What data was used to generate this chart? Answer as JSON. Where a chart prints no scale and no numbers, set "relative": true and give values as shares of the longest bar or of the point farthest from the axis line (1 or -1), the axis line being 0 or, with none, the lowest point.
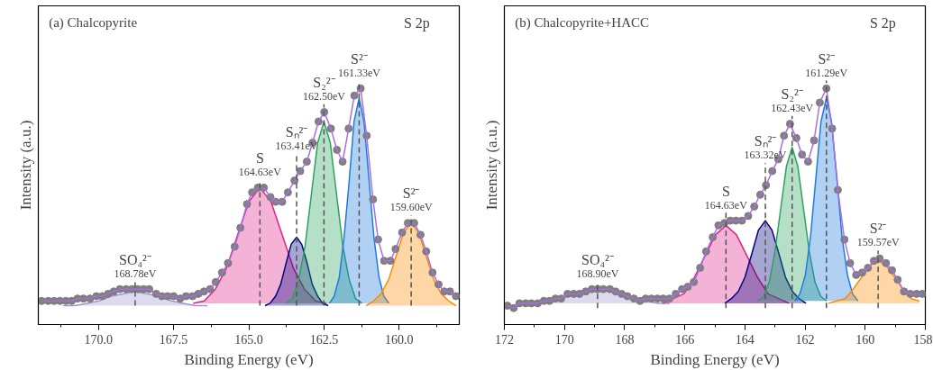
{
  "chart_data": [
    {
      "type": "line",
      "title": "(a) Chalcopyrite",
      "subtitle": "S 2p",
      "xlabel": "Binding Energy (eV)",
      "ylabel": "Intensity (a.u.)",
      "relative": true,
      "tick_labels": "x",
      "xlim": [
        172,
        158
      ],
      "xticks": [
        {
          "value": 171.25,
          "label": null
        },
        {
          "value": 170,
          "label": "170.0"
        },
        {
          "value": 168.75,
          "label": null
        },
        {
          "value": 167.5,
          "label": "167.5"
        },
        {
          "value": 166.25,
          "label": null
        },
        {
          "value": 165,
          "label": "165.0"
        },
        {
          "value": 163.75,
          "label": null
        },
        {
          "value": 162.5,
          "label": "162.5"
        },
        {
          "value": 161.25,
          "label": null
        },
        {
          "value": 160,
          "label": "160.0"
        },
        {
          "value": 158.75,
          "label": null
        }
      ],
      "series": [
        {
          "type": "area",
          "color": "#9f95d0",
          "x": [
            171.18,
            170.78,
            170.38,
            169.98,
            169.58,
            169.18,
            168.78,
            168.38,
            167.98,
            167.58,
            167.18,
            166.78,
            166.38
          ],
          "values": [
            0.08,
            0.08,
            0.09,
            0.1,
            0.12,
            0.13,
            0.14,
            0.13,
            0.12,
            0.1,
            0.09,
            0.08,
            0.08
          ]
        },
        {
          "type": "area",
          "color": "#e0218a",
          "x": [
            166.85,
            166.48,
            166.11,
            165.74,
            165.37,
            165.0,
            164.63,
            164.26,
            163.89,
            163.52,
            163.15,
            162.78,
            162.41
          ],
          "values": [
            0.09,
            0.1,
            0.15,
            0.24,
            0.38,
            0.52,
            0.58,
            0.52,
            0.38,
            0.24,
            0.15,
            0.1,
            0.09
          ]
        },
        {
          "type": "area",
          "color": "#000080",
          "x": [
            164.46,
            164.29,
            164.11,
            163.94,
            163.76,
            163.59,
            163.41,
            163.24,
            163.06,
            162.89,
            162.71,
            162.54,
            162.36
          ],
          "values": [
            0.08,
            0.09,
            0.12,
            0.17,
            0.26,
            0.34,
            0.37,
            0.34,
            0.26,
            0.17,
            0.12,
            0.09,
            0.08
          ]
        },
        {
          "type": "area",
          "color": "#2ca25f",
          "x": [
            163.76,
            163.55,
            163.34,
            163.13,
            162.92,
            162.71,
            162.5,
            162.29,
            162.08,
            161.87,
            161.66,
            161.45,
            161.24
          ],
          "values": [
            0.09,
            0.11,
            0.19,
            0.33,
            0.55,
            0.77,
            0.86,
            0.77,
            0.55,
            0.33,
            0.19,
            0.11,
            0.09
          ]
        },
        {
          "type": "area",
          "color": "#1e7be0",
          "x": [
            162.32,
            162.16,
            161.99,
            161.83,
            161.66,
            161.5,
            161.33,
            161.17,
            161.0,
            160.84,
            160.67,
            160.51,
            160.34
          ],
          "values": [
            0.09,
            0.12,
            0.2,
            0.37,
            0.61,
            0.86,
            0.96,
            0.86,
            0.61,
            0.37,
            0.2,
            0.12,
            0.09
          ]
        },
        {
          "type": "area",
          "color": "#ff8c00",
          "x": [
            161.1,
            160.85,
            160.6,
            160.35,
            160.1,
            159.85,
            159.6,
            159.35,
            159.1,
            158.85,
            158.6,
            158.35,
            158.1
          ],
          "values": [
            0.08,
            0.1,
            0.13,
            0.19,
            0.29,
            0.39,
            0.43,
            0.39,
            0.29,
            0.19,
            0.13,
            0.1,
            0.08
          ]
        },
        {
          "type": "scatter",
          "marker": "circle",
          "color": "#7f7f7f",
          "x": [
            171.89,
            171.67,
            171.47,
            171.28,
            171.08,
            170.89,
            170.7,
            170.5,
            170.28,
            170.07,
            169.87,
            169.68,
            169.49,
            169.29,
            169.08,
            168.89,
            168.69,
            168.5,
            168.31,
            168.08,
            167.89,
            167.7,
            167.5,
            167.28,
            167.09,
            166.87,
            166.68,
            166.49,
            166.29,
            166.1,
            165.89,
            165.69,
            165.47,
            165.28,
            165.06,
            164.89,
            164.7,
            164.5,
            164.28,
            164.11,
            163.89,
            163.7,
            163.48,
            163.29,
            163.07,
            162.88,
            162.68,
            162.49,
            162.27,
            162.07,
            161.88,
            161.68,
            161.49,
            161.28,
            161.08,
            160.87,
            160.7,
            160.5,
            160.29,
            160.12,
            159.9,
            159.71,
            159.5,
            159.29,
            159.1,
            158.89,
            158.69,
            158.5,
            158.31,
            158.11
          ],
          "values": [
            0.1,
            0.1,
            0.1,
            0.1,
            0.1,
            0.1,
            0.11,
            0.11,
            0.11,
            0.12,
            0.12,
            0.13,
            0.14,
            0.15,
            0.15,
            0.15,
            0.15,
            0.15,
            0.15,
            0.13,
            0.12,
            0.12,
            0.12,
            0.11,
            0.12,
            0.12,
            0.13,
            0.14,
            0.15,
            0.18,
            0.22,
            0.26,
            0.33,
            0.41,
            0.51,
            0.56,
            0.58,
            0.58,
            0.54,
            0.52,
            0.52,
            0.56,
            0.61,
            0.65,
            0.69,
            0.77,
            0.86,
            0.9,
            0.83,
            0.74,
            0.69,
            0.83,
            0.97,
            1.0,
            0.8,
            0.53,
            0.36,
            0.27,
            0.27,
            0.32,
            0.39,
            0.43,
            0.43,
            0.38,
            0.31,
            0.22,
            0.17,
            0.14,
            0.14,
            0.12
          ]
        },
        {
          "color": "#a86fe0",
          "x": [
            171.89,
            171.67,
            171.47,
            171.28,
            171.08,
            170.89,
            170.7,
            170.5,
            170.28,
            170.07,
            169.87,
            169.68,
            169.49,
            169.29,
            169.08,
            168.89,
            168.69,
            168.5,
            168.31,
            168.08,
            167.89,
            167.7,
            167.5,
            167.28,
            167.09,
            166.87,
            166.68,
            166.49,
            166.29,
            166.1,
            165.89,
            165.69,
            165.47,
            165.28,
            165.06,
            164.89,
            164.7,
            164.5,
            164.28,
            164.11,
            163.89,
            163.7,
            163.48,
            163.29,
            163.07,
            162.88,
            162.68,
            162.49,
            162.27,
            162.07,
            161.88,
            161.68,
            161.49,
            161.28,
            161.08,
            160.87,
            160.7,
            160.5,
            160.29,
            160.12,
            159.9,
            159.71,
            159.5,
            159.29,
            159.1,
            158.89,
            158.69,
            158.5,
            158.31,
            158.11
          ],
          "values": [
            0.1,
            0.1,
            0.1,
            0.1,
            0.1,
            0.1,
            0.11,
            0.11,
            0.11,
            0.12,
            0.12,
            0.13,
            0.14,
            0.15,
            0.15,
            0.15,
            0.15,
            0.15,
            0.15,
            0.13,
            0.12,
            0.12,
            0.12,
            0.11,
            0.12,
            0.12,
            0.13,
            0.14,
            0.15,
            0.18,
            0.22,
            0.26,
            0.33,
            0.41,
            0.51,
            0.56,
            0.58,
            0.58,
            0.54,
            0.52,
            0.52,
            0.56,
            0.61,
            0.65,
            0.69,
            0.77,
            0.86,
            0.9,
            0.83,
            0.74,
            0.69,
            0.83,
            0.97,
            1.0,
            0.8,
            0.53,
            0.36,
            0.27,
            0.27,
            0.32,
            0.39,
            0.43,
            0.43,
            0.38,
            0.31,
            0.22,
            0.17,
            0.14,
            0.14,
            0.12
          ]
        }
      ],
      "ref_lines": [
        {
          "axis": "x",
          "value": 168.78,
          "color": "#555555",
          "line_style": "dashed"
        },
        {
          "axis": "x",
          "value": 164.63,
          "color": "#555555",
          "line_style": "dashed"
        },
        {
          "axis": "x",
          "value": 163.41,
          "color": "#555555",
          "line_style": "dashed"
        },
        {
          "axis": "x",
          "value": 162.5,
          "color": "#555555",
          "line_style": "dashed"
        },
        {
          "axis": "x",
          "value": 161.33,
          "color": "#555555",
          "line_style": "dashed"
        },
        {
          "axis": "x",
          "value": 159.6,
          "color": "#555555",
          "line_style": "dashed"
        }
      ],
      "annotations": [
        {
          "text": "SO₄²⁻\n168.78eV",
          "x": 168.78,
          "y": 0.15
        },
        {
          "text": "S\n164.63eV",
          "x": 164.63,
          "y": 0.58
        },
        {
          "text": "Sₙ²⁻\n163.41eV",
          "x": 163.41,
          "y": 0.69
        },
        {
          "text": "S₂²⁻\n162.50eV",
          "x": 162.5,
          "y": 0.9
        },
        {
          "text": "S²⁻\n161.33eV",
          "x": 161.33,
          "y": 1.0
        },
        {
          "text": "S²⁻\n159.60eV",
          "x": 159.6,
          "y": 0.43
        }
      ]
    },
    {
      "type": "line",
      "title": "(b) Chalcopyrite+HACC",
      "subtitle": "S 2p",
      "xlabel": "Binding Energy (eV)",
      "ylabel": "Intensity (a.u.)",
      "relative": true,
      "tick_labels": "x",
      "xlim": [
        172,
        158
      ],
      "xticks": [
        172,
        {
          "value": 171,
          "label": null
        },
        170,
        {
          "value": 169,
          "label": null
        },
        168,
        {
          "value": 167,
          "label": null
        },
        166,
        {
          "value": 165,
          "label": null
        },
        164,
        {
          "value": 163,
          "label": null
        },
        162,
        {
          "value": 161,
          "label": null
        },
        160,
        {
          "value": 159,
          "label": null
        },
        158
      ],
      "series": [
        {
          "type": "area",
          "color": "#9f95d0",
          "x": [
            171.3,
            170.9,
            170.5,
            170.1,
            169.7,
            169.3,
            168.9,
            168.5,
            168.1,
            167.7,
            167.3,
            166.9,
            166.5
          ],
          "values": [
            0.09,
            0.09,
            0.1,
            0.11,
            0.13,
            0.15,
            0.16,
            0.15,
            0.13,
            0.11,
            0.1,
            0.09,
            0.09
          ]
        },
        {
          "type": "area",
          "color": "#e0218a",
          "x": [
            166.73,
            166.38,
            166.03,
            165.68,
            165.33,
            164.98,
            164.63,
            164.28,
            163.93,
            163.58,
            163.23,
            162.88,
            162.53
          ],
          "values": [
            0.09,
            0.11,
            0.13,
            0.2,
            0.29,
            0.38,
            0.42,
            0.38,
            0.29,
            0.2,
            0.13,
            0.11,
            0.09
          ]
        },
        {
          "type": "area",
          "color": "#000080",
          "x": [
            164.67,
            164.45,
            164.22,
            164.0,
            163.77,
            163.55,
            163.32,
            163.1,
            162.87,
            162.65,
            162.42,
            162.2,
            161.97
          ],
          "values": [
            0.09,
            0.11,
            0.14,
            0.2,
            0.3,
            0.4,
            0.44,
            0.4,
            0.3,
            0.2,
            0.14,
            0.11,
            0.09
          ]
        },
        {
          "type": "area",
          "color": "#2ca25f",
          "x": [
            163.57,
            163.38,
            163.19,
            163.0,
            162.81,
            162.62,
            162.43,
            162.24,
            162.05,
            161.86,
            161.67,
            161.48,
            161.29
          ],
          "values": [
            0.1,
            0.12,
            0.18,
            0.31,
            0.49,
            0.67,
            0.75,
            0.67,
            0.49,
            0.31,
            0.18,
            0.12,
            0.1
          ]
        },
        {
          "type": "area",
          "color": "#1e7be0",
          "x": [
            162.34,
            162.17,
            161.99,
            161.82,
            161.64,
            161.47,
            161.29,
            161.12,
            160.94,
            160.77,
            160.59,
            160.42,
            160.24
          ],
          "values": [
            0.1,
            0.13,
            0.21,
            0.37,
            0.62,
            0.86,
            0.96,
            0.86,
            0.62,
            0.37,
            0.21,
            0.13,
            0.1
          ]
        },
        {
          "type": "area",
          "color": "#ff8c00",
          "x": [
            161.22,
            160.95,
            160.67,
            160.4,
            160.12,
            159.85,
            159.57,
            159.3,
            159.02,
            158.75,
            158.47,
            158.2
          ],
          "values": [
            0.09,
            0.1,
            0.11,
            0.15,
            0.2,
            0.25,
            0.27,
            0.25,
            0.2,
            0.15,
            0.11,
            0.1
          ]
        },
        {
          "type": "scatter",
          "marker": "circle",
          "color": "#7f7f7f",
          "x": [
            171.9,
            171.69,
            171.5,
            171.29,
            171.1,
            170.89,
            170.69,
            170.5,
            170.3,
            170.11,
            169.9,
            169.69,
            169.5,
            169.29,
            169.09,
            168.9,
            168.71,
            168.49,
            168.3,
            168.1,
            167.91,
            167.69,
            167.49,
            167.3,
            167.11,
            166.91,
            166.72,
            166.51,
            166.3,
            166.09,
            165.9,
            165.7,
            165.49,
            165.29,
            165.07,
            164.88,
            164.68,
            164.49,
            164.3,
            164.1,
            163.89,
            163.69,
            163.49,
            163.3,
            163.09,
            162.89,
            162.7,
            162.5,
            162.29,
            162.1,
            161.9,
            161.7,
            161.51,
            161.29,
            161.1,
            160.91,
            160.69,
            160.5,
            160.3,
            160.1,
            159.91,
            159.71,
            159.52,
            159.31,
            159.11,
            158.92,
            158.71,
            158.5,
            158.29,
            158.1
          ],
          "values": [
            0.08,
            0.07,
            0.09,
            0.09,
            0.09,
            0.09,
            0.1,
            0.1,
            0.11,
            0.11,
            0.13,
            0.13,
            0.13,
            0.14,
            0.15,
            0.15,
            0.15,
            0.15,
            0.14,
            0.13,
            0.12,
            0.11,
            0.1,
            0.11,
            0.11,
            0.11,
            0.11,
            0.11,
            0.13,
            0.15,
            0.16,
            0.18,
            0.24,
            0.31,
            0.37,
            0.42,
            0.43,
            0.44,
            0.44,
            0.44,
            0.46,
            0.5,
            0.55,
            0.59,
            0.65,
            0.7,
            0.8,
            0.85,
            0.79,
            0.72,
            0.69,
            0.78,
            0.94,
            1.0,
            0.83,
            0.57,
            0.36,
            0.26,
            0.21,
            0.22,
            0.24,
            0.27,
            0.28,
            0.26,
            0.23,
            0.19,
            0.14,
            0.13,
            0.13,
            0.13
          ]
        },
        {
          "color": "#a86fe0",
          "x": [
            171.9,
            171.69,
            171.5,
            171.29,
            171.1,
            170.89,
            170.69,
            170.5,
            170.3,
            170.11,
            169.9,
            169.69,
            169.5,
            169.29,
            169.09,
            168.9,
            168.71,
            168.49,
            168.3,
            168.1,
            167.91,
            167.69,
            167.49,
            167.3,
            167.11,
            166.91,
            166.72,
            166.51,
            166.3,
            166.09,
            165.9,
            165.7,
            165.49,
            165.29,
            165.07,
            164.88,
            164.68,
            164.49,
            164.3,
            164.1,
            163.89,
            163.69,
            163.49,
            163.3,
            163.09,
            162.89,
            162.7,
            162.5,
            162.29,
            162.1,
            161.9,
            161.7,
            161.51,
            161.29,
            161.1,
            160.91,
            160.69,
            160.5,
            160.3,
            160.1,
            159.91,
            159.71,
            159.52,
            159.31,
            159.11,
            158.92,
            158.71,
            158.5,
            158.29,
            158.1
          ],
          "values": [
            0.08,
            0.07,
            0.09,
            0.09,
            0.09,
            0.09,
            0.1,
            0.1,
            0.11,
            0.11,
            0.13,
            0.13,
            0.13,
            0.14,
            0.15,
            0.15,
            0.15,
            0.15,
            0.14,
            0.13,
            0.12,
            0.11,
            0.1,
            0.11,
            0.11,
            0.11,
            0.11,
            0.11,
            0.13,
            0.15,
            0.16,
            0.18,
            0.24,
            0.31,
            0.37,
            0.42,
            0.43,
            0.44,
            0.44,
            0.44,
            0.46,
            0.5,
            0.55,
            0.59,
            0.65,
            0.7,
            0.8,
            0.85,
            0.79,
            0.72,
            0.69,
            0.78,
            0.94,
            1.0,
            0.83,
            0.57,
            0.36,
            0.26,
            0.21,
            0.22,
            0.24,
            0.27,
            0.28,
            0.26,
            0.23,
            0.19,
            0.14,
            0.13,
            0.13,
            0.13
          ]
        }
      ],
      "ref_lines": [
        {
          "axis": "x",
          "value": 168.9,
          "color": "#555555",
          "line_style": "dashed"
        },
        {
          "axis": "x",
          "value": 164.63,
          "color": "#555555",
          "line_style": "dashed"
        },
        {
          "axis": "x",
          "value": 163.32,
          "color": "#555555",
          "line_style": "dashed"
        },
        {
          "axis": "x",
          "value": 162.43,
          "color": "#555555",
          "line_style": "dashed"
        },
        {
          "axis": "x",
          "value": 161.29,
          "color": "#555555",
          "line_style": "dashed"
        },
        {
          "axis": "x",
          "value": 159.57,
          "color": "#555555",
          "line_style": "dashed"
        }
      ],
      "annotations": [
        {
          "text": "SO₄²⁻\n168.90eV",
          "x": 168.9,
          "y": 0.15
        },
        {
          "text": "S\n164.63eV",
          "x": 164.63,
          "y": 0.44
        },
        {
          "text": "Sₙ²⁻\n163.32eV",
          "x": 163.32,
          "y": 0.65
        },
        {
          "text": "S₂²⁻\n162.43eV",
          "x": 162.43,
          "y": 0.85
        },
        {
          "text": "S²⁻\n161.29eV",
          "x": 161.29,
          "y": 1.0
        },
        {
          "text": "S²⁻\n159.57eV",
          "x": 159.57,
          "y": 0.28
        }
      ]
    }
  ]
}
